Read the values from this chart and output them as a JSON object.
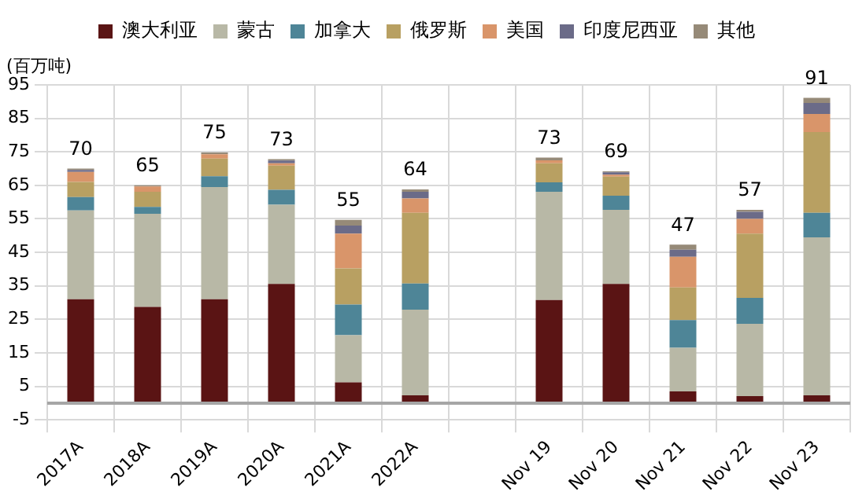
{
  "chart_data": {
    "type": "bar",
    "stacked": true,
    "ylabel": "(百万吨)",
    "categories": [
      "2017A",
      "2018A",
      "2019A",
      "2020A",
      "2021A",
      "2022A",
      null,
      "Nov 19",
      "Nov 20",
      "Nov 21",
      "Nov 22",
      "Nov 23"
    ],
    "series": [
      {
        "name": "澳大利亚",
        "color": "#5a1414",
        "values": [
          31,
          28.7,
          31,
          35.6,
          6.2,
          2.3,
          null,
          30.8,
          35.6,
          3.5,
          2.1,
          2.3
        ]
      },
      {
        "name": "蒙古",
        "color": "#b8b8a6",
        "values": [
          26.5,
          27.8,
          33.5,
          23.6,
          14.1,
          25.6,
          null,
          32.3,
          22.1,
          13,
          21.6,
          47.2
        ]
      },
      {
        "name": "加拿大",
        "color": "#4e8597",
        "values": [
          4,
          2.1,
          3.2,
          4.5,
          9.1,
          7.8,
          null,
          2.8,
          4.2,
          8.3,
          7.7,
          7.3
        ]
      },
      {
        "name": "俄罗斯",
        "color": "#b8a062",
        "values": [
          4.5,
          4.5,
          5.3,
          7.2,
          10.8,
          21.1,
          null,
          5.7,
          5.7,
          9.7,
          19.2,
          24.1
        ]
      },
      {
        "name": "美国",
        "color": "#d9956a",
        "values": [
          3,
          1.6,
          1.3,
          0.7,
          10.4,
          4.3,
          null,
          0.9,
          0.6,
          9.2,
          4.4,
          5.4
        ]
      },
      {
        "name": "印度尼西亚",
        "color": "#6b6b88",
        "values": [
          0.6,
          0,
          0,
          0.8,
          2.4,
          2,
          null,
          0,
          0.7,
          2.1,
          2.1,
          3.3
        ]
      },
      {
        "name": "其他",
        "color": "#968a78",
        "values": [
          0.4,
          0.3,
          0.5,
          0.4,
          1.7,
          0.7,
          null,
          0.8,
          0.3,
          1.5,
          0.6,
          1.5
        ]
      }
    ],
    "totals": [
      "70",
      "65",
      "75",
      "73",
      "55",
      "64",
      null,
      "73",
      "69",
      "47",
      "57",
      "91"
    ],
    "ylim": [
      -5,
      95
    ],
    "yticks": [
      -5,
      5,
      15,
      25,
      35,
      45,
      55,
      65,
      75,
      85,
      95
    ],
    "ref_lines": [
      {
        "axis": "y",
        "value": 0,
        "color": "#a6a6a6"
      }
    ],
    "grid": true,
    "legend": "top"
  }
}
